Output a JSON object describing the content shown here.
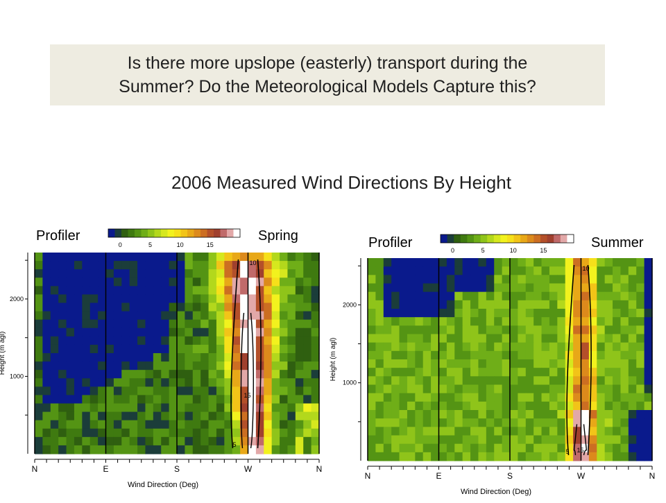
{
  "slide": {
    "question_line1": "Is there more upslope (easterly) transport during the",
    "question_line2": "Summer?  Do the Meteorological Models Capture this?",
    "title": "2006 Measured Wind Directions By Height"
  },
  "chart_data": [
    {
      "type": "heatmap",
      "title": "Profiler",
      "season_label": "Spring",
      "xlabel": "Wind Direction (Deg)",
      "ylabel": "Height (m agl)",
      "x_cardinal_labels": [
        "N",
        "E",
        "S",
        "W",
        "N"
      ],
      "x_degrees": [
        0,
        90,
        180,
        270,
        360
      ],
      "y_ticks": [
        1000,
        2000
      ],
      "ylim": [
        0,
        2600
      ],
      "colorbar_ticks": [
        0,
        5,
        10,
        15
      ],
      "colorbar_range": [
        -2,
        20
      ],
      "contour_labels": [
        "5",
        "10",
        "15"
      ],
      "dominant_direction_deg": 270,
      "peak_value": 18
    },
    {
      "type": "heatmap",
      "title": "Profiler",
      "season_label": "Summer",
      "xlabel": "Wind Direction (Deg)",
      "ylabel": "Height (m agl)",
      "x_cardinal_labels": [
        "N",
        "E",
        "S",
        "W",
        "N"
      ],
      "x_degrees": [
        0,
        90,
        180,
        270,
        360
      ],
      "y_ticks": [
        1000,
        2000
      ],
      "ylim": [
        0,
        2600
      ],
      "colorbar_ticks": [
        0,
        5,
        10,
        15
      ],
      "colorbar_range": [
        -2,
        20
      ],
      "contour_labels": [
        "5",
        "10",
        "15"
      ],
      "dominant_direction_deg": 270,
      "peak_value": 16
    }
  ],
  "colors": {
    "question_bg": "#eeece1",
    "colorbar": [
      "#0a1a8c",
      "#1b3d3a",
      "#2f5f10",
      "#3f7a10",
      "#549414",
      "#6fae18",
      "#8fc41a",
      "#b3d81c",
      "#d6e81e",
      "#f2f21e",
      "#f6e01a",
      "#f2c418",
      "#e8a818",
      "#dc8a1c",
      "#cc6e22",
      "#b4502a",
      "#a0402e",
      "#c06a6a",
      "#e2a8a8",
      "#ffffff"
    ]
  }
}
